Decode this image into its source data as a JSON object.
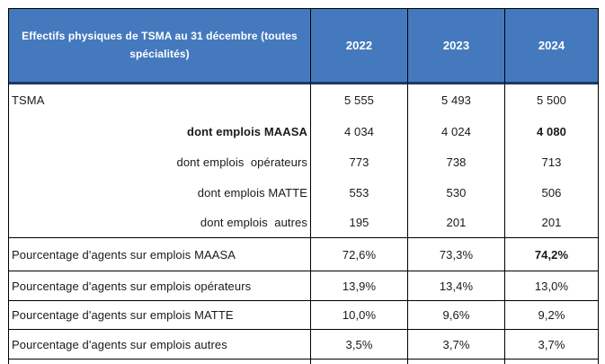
{
  "header": {
    "title": "Effectifs physiques de TSMA au 31 décembre (toutes spécialités)",
    "years": [
      "2022",
      "2023",
      "2024"
    ]
  },
  "rows": [
    {
      "label": "TSMA",
      "align": "left",
      "label_bold": false,
      "section": "detail",
      "values": [
        "5 555",
        "5 493",
        "5 500"
      ],
      "value_bold": [
        false,
        false,
        false
      ]
    },
    {
      "label": "dont emplois MAASA",
      "align": "right",
      "label_bold": true,
      "section": "detail",
      "values": [
        "4 034",
        "4 024",
        "4 080"
      ],
      "value_bold": [
        false,
        false,
        true
      ]
    },
    {
      "label": "dont emplois  opérateurs",
      "align": "right",
      "label_bold": false,
      "section": "detail",
      "values": [
        "773",
        "738",
        "713"
      ],
      "value_bold": [
        false,
        false,
        false
      ]
    },
    {
      "label": "dont emplois MATTE",
      "align": "right",
      "label_bold": false,
      "section": "detail",
      "values": [
        "553",
        "530",
        "506"
      ],
      "value_bold": [
        false,
        false,
        false
      ]
    },
    {
      "label": "dont emplois  autres",
      "align": "right",
      "label_bold": false,
      "section": "detail",
      "values": [
        "195",
        "201",
        "201"
      ],
      "value_bold": [
        false,
        false,
        false
      ]
    },
    {
      "label": "Pourcentage d'agents sur emplois MAASA",
      "align": "left",
      "label_bold": false,
      "section": "pct",
      "values": [
        "72,6%",
        "73,3%",
        "74,2%"
      ],
      "value_bold": [
        false,
        false,
        true
      ]
    },
    {
      "label": "Pourcentage d'agents sur emplois opérateurs",
      "align": "left",
      "label_bold": false,
      "section": "pct",
      "values": [
        "13,9%",
        "13,4%",
        "13,0%"
      ],
      "value_bold": [
        false,
        false,
        false
      ]
    },
    {
      "label": "Pourcentage d'agents sur emplois MATTE",
      "align": "left",
      "label_bold": false,
      "section": "pct",
      "values": [
        "10,0%",
        "9,6%",
        "9,2%"
      ],
      "value_bold": [
        false,
        false,
        false
      ]
    },
    {
      "label": "Pourcentage d'agents sur emplois autres",
      "align": "left",
      "label_bold": false,
      "section": "pct",
      "values": [
        "3,5%",
        "3,7%",
        "3,7%"
      ],
      "value_bold": [
        false,
        false,
        false
      ]
    }
  ],
  "colors": {
    "header_bg": "#4579be",
    "header_text": "#ffffff",
    "header_underline": "#1f3864",
    "border": "#000000",
    "text": "#1a1a1a"
  }
}
